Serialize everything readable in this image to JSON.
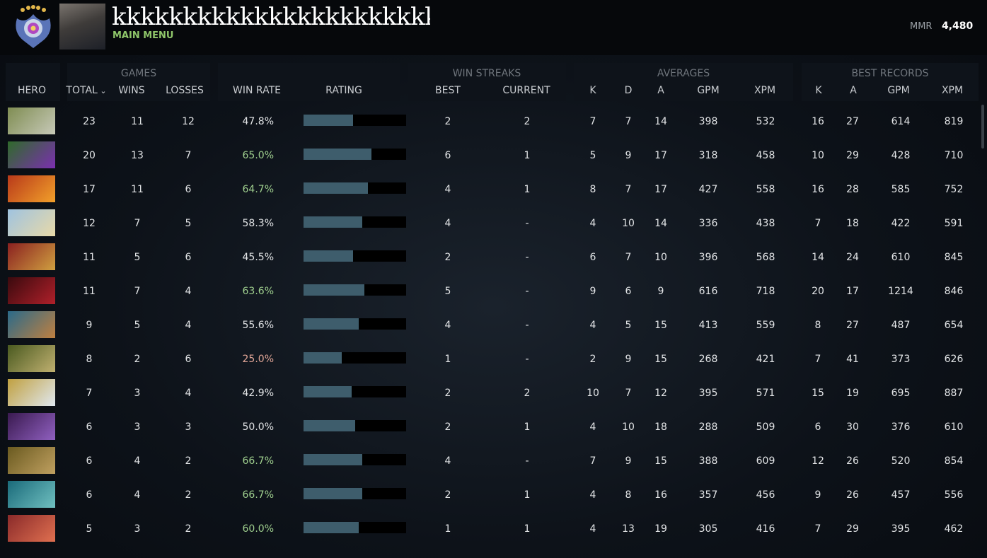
{
  "header": {
    "player_name": "kkkkkkkkkkkkkkkkkkkkkkk",
    "main_menu": "MAIN MENU",
    "mmr_label": "MMR",
    "mmr_value": "4,480",
    "rank_badge_icon": "immortal-rank-badge-icon"
  },
  "columns": {
    "groups": {
      "games": "GAMES",
      "win_streaks": "WIN STREAKS",
      "averages": "AVERAGES",
      "best_records": "BEST RECORDS"
    },
    "hero": "HERO",
    "total": "TOTAL",
    "wins": "WINS",
    "losses": "LOSSES",
    "win_rate": "WIN RATE",
    "rating": "RATING",
    "best": "BEST",
    "current": "CURRENT",
    "k": "K",
    "d": "D",
    "a": "A",
    "gpm": "GPM",
    "xpm": "XPM",
    "best_k": "K",
    "best_a": "A",
    "best_gpm": "GPM",
    "best_xpm": "XPM",
    "sort_icon": "chevron-down-icon"
  },
  "colors": {
    "win_rate_high": "#9fcf8e",
    "win_rate_low": "#e0a596",
    "win_rate_normal": "#e2e4e6",
    "rating_fill": "#3e5d6c"
  },
  "rows": [
    {
      "hero_colors": [
        "#7f8d52",
        "#c7c9b8"
      ],
      "total": "23",
      "wins": "11",
      "losses": "12",
      "win_rate": "47.8%",
      "rating": 0.48,
      "best": "2",
      "current": "2",
      "k": "7",
      "d": "7",
      "a": "14",
      "gpm": "398",
      "xpm": "532",
      "best_k": "16",
      "best_a": "27",
      "best_gpm": "614",
      "best_xpm": "819"
    },
    {
      "hero_colors": [
        "#2f6a2a",
        "#7b2fb0"
      ],
      "total": "20",
      "wins": "13",
      "losses": "7",
      "win_rate": "65.0%",
      "rating": 0.66,
      "best": "6",
      "current": "1",
      "k": "5",
      "d": "9",
      "a": "17",
      "gpm": "318",
      "xpm": "458",
      "best_k": "10",
      "best_a": "29",
      "best_gpm": "428",
      "best_xpm": "710"
    },
    {
      "hero_colors": [
        "#b8391a",
        "#f2a02a"
      ],
      "total": "17",
      "wins": "11",
      "losses": "6",
      "win_rate": "64.7%",
      "rating": 0.63,
      "best": "4",
      "current": "1",
      "k": "8",
      "d": "7",
      "a": "17",
      "gpm": "427",
      "xpm": "558",
      "best_k": "16",
      "best_a": "28",
      "best_gpm": "585",
      "best_xpm": "752"
    },
    {
      "hero_colors": [
        "#9fc3e0",
        "#e8d9a8"
      ],
      "total": "12",
      "wins": "7",
      "losses": "5",
      "win_rate": "58.3%",
      "rating": 0.57,
      "best": "4",
      "current": "-",
      "k": "4",
      "d": "10",
      "a": "14",
      "gpm": "336",
      "xpm": "438",
      "best_k": "7",
      "best_a": "18",
      "best_gpm": "422",
      "best_xpm": "591"
    },
    {
      "hero_colors": [
        "#8a2020",
        "#d0a040"
      ],
      "total": "11",
      "wins": "5",
      "losses": "6",
      "win_rate": "45.5%",
      "rating": 0.48,
      "best": "2",
      "current": "-",
      "k": "6",
      "d": "7",
      "a": "10",
      "gpm": "396",
      "xpm": "568",
      "best_k": "14",
      "best_a": "24",
      "best_gpm": "610",
      "best_xpm": "845"
    },
    {
      "hero_colors": [
        "#3a0a0e",
        "#b0202a"
      ],
      "total": "11",
      "wins": "7",
      "losses": "4",
      "win_rate": "63.6%",
      "rating": 0.59,
      "best": "5",
      "current": "-",
      "k": "9",
      "d": "6",
      "a": "9",
      "gpm": "616",
      "xpm": "718",
      "best_k": "20",
      "best_a": "17",
      "best_gpm": "1214",
      "best_xpm": "846"
    },
    {
      "hero_colors": [
        "#2a6a8a",
        "#c08040"
      ],
      "total": "9",
      "wins": "5",
      "losses": "4",
      "win_rate": "55.6%",
      "rating": 0.54,
      "best": "4",
      "current": "-",
      "k": "4",
      "d": "5",
      "a": "15",
      "gpm": "413",
      "xpm": "559",
      "best_k": "8",
      "best_a": "27",
      "best_gpm": "487",
      "best_xpm": "654"
    },
    {
      "hero_colors": [
        "#4a5a20",
        "#c0b070"
      ],
      "total": "8",
      "wins": "2",
      "losses": "6",
      "win_rate": "25.0%",
      "rating": 0.37,
      "best": "1",
      "current": "-",
      "k": "2",
      "d": "9",
      "a": "15",
      "gpm": "268",
      "xpm": "421",
      "best_k": "7",
      "best_a": "41",
      "best_gpm": "373",
      "best_xpm": "626"
    },
    {
      "hero_colors": [
        "#c0a040",
        "#e0e8f0"
      ],
      "total": "7",
      "wins": "3",
      "losses": "4",
      "win_rate": "42.9%",
      "rating": 0.47,
      "best": "2",
      "current": "2",
      "k": "10",
      "d": "7",
      "a": "12",
      "gpm": "395",
      "xpm": "571",
      "best_k": "15",
      "best_a": "19",
      "best_gpm": "695",
      "best_xpm": "887"
    },
    {
      "hero_colors": [
        "#3a1a50",
        "#9060c0"
      ],
      "total": "6",
      "wins": "3",
      "losses": "3",
      "win_rate": "50.0%",
      "rating": 0.5,
      "best": "2",
      "current": "1",
      "k": "4",
      "d": "10",
      "a": "18",
      "gpm": "288",
      "xpm": "509",
      "best_k": "6",
      "best_a": "30",
      "best_gpm": "376",
      "best_xpm": "610"
    },
    {
      "hero_colors": [
        "#6a5a20",
        "#c0a060"
      ],
      "total": "6",
      "wins": "4",
      "losses": "2",
      "win_rate": "66.7%",
      "rating": 0.57,
      "best": "4",
      "current": "-",
      "k": "7",
      "d": "9",
      "a": "15",
      "gpm": "388",
      "xpm": "609",
      "best_k": "12",
      "best_a": "26",
      "best_gpm": "520",
      "best_xpm": "854"
    },
    {
      "hero_colors": [
        "#1a6a7a",
        "#70c0c0"
      ],
      "total": "6",
      "wins": "4",
      "losses": "2",
      "win_rate": "66.7%",
      "rating": 0.57,
      "best": "2",
      "current": "1",
      "k": "4",
      "d": "8",
      "a": "16",
      "gpm": "357",
      "xpm": "456",
      "best_k": "9",
      "best_a": "26",
      "best_gpm": "457",
      "best_xpm": "556"
    },
    {
      "hero_colors": [
        "#8a2a2a",
        "#e07050"
      ],
      "total": "5",
      "wins": "3",
      "losses": "2",
      "win_rate": "60.0%",
      "rating": 0.54,
      "best": "1",
      "current": "1",
      "k": "4",
      "d": "13",
      "a": "19",
      "gpm": "305",
      "xpm": "416",
      "best_k": "7",
      "best_a": "29",
      "best_gpm": "395",
      "best_xpm": "462"
    }
  ]
}
